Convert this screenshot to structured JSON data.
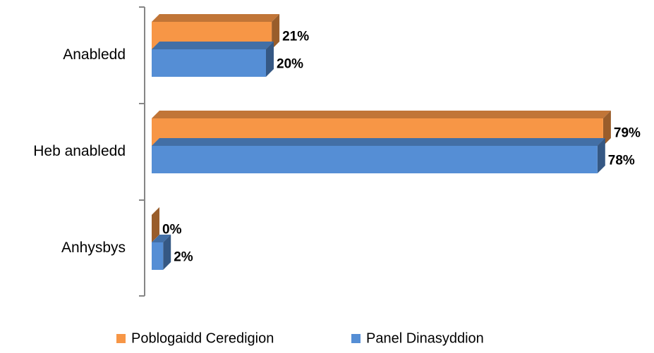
{
  "chart_data": {
    "type": "bar3d-horizontal",
    "categories": [
      "Anabledd",
      "Heb anabledd",
      "Anhysbys"
    ],
    "series": [
      {
        "name": "Poblogaidd Ceredigion",
        "color": "#f79646",
        "values": [
          21,
          79,
          0
        ],
        "value_labels": [
          "21%",
          "79%",
          "0%"
        ]
      },
      {
        "name": "Panel Dinasyddion",
        "color": "#558ed5",
        "values": [
          20,
          78,
          2
        ],
        "value_labels": [
          "20%",
          "78%",
          "2%"
        ]
      }
    ]
  }
}
